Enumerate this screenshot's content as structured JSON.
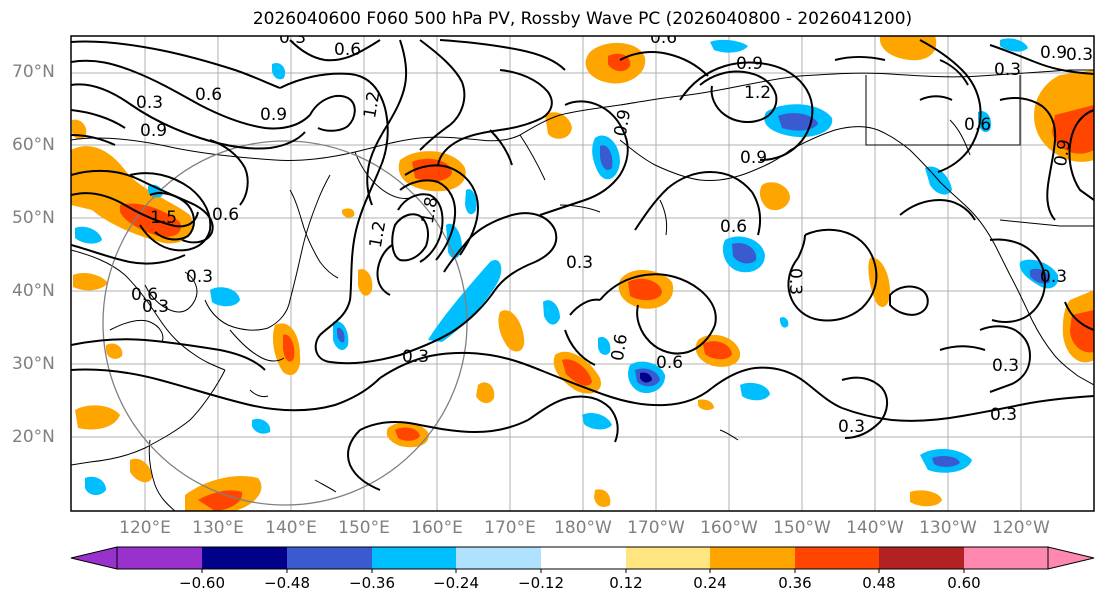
{
  "title": "2026040600 F060 500 hPa PV, Rossby Wave PC (2026040800 - 2026041200)",
  "lat_labels": [
    "70°N",
    "60°N",
    "50°N",
    "40°N",
    "30°N",
    "20°N"
  ],
  "lon_labels": [
    "120°E",
    "130°E",
    "140°E",
    "150°E",
    "160°E",
    "170°E",
    "180°W",
    "170°W",
    "160°W",
    "150°W",
    "140°W",
    "130°W",
    "120°W"
  ],
  "colorbar": {
    "ticks": [
      "−0.60",
      "−0.48",
      "−0.36",
      "−0.24",
      "−0.12",
      "0.12",
      "0.24",
      "0.36",
      "0.48",
      "0.60"
    ],
    "colors": [
      "#9932cc",
      "#00008b",
      "#3a5bcf",
      "#00bfff",
      "#b0e2ff",
      "#ffffff",
      "#ffe680",
      "#ffa500",
      "#ff4500",
      "#b22222",
      "#ff88b0"
    ]
  },
  "contour_labels": [
    "0.6",
    "0.3",
    "0.9",
    "1.2",
    "0.6",
    "0.3",
    "0.9",
    "0.9",
    "1.2",
    "0.3",
    "0.9",
    "0.6",
    "0.3",
    "1.5",
    "1.2",
    "1.8",
    "0.6",
    "0.3",
    "0.3",
    "0.6",
    "0.9",
    "0.3",
    "0.6",
    "0.3",
    "0.3",
    "0.3",
    "0.6",
    "0.3",
    "0.6",
    "0.6",
    "0.3",
    "0.9",
    "0.3",
    "0.9"
  ],
  "colors": {
    "contour": "#000000",
    "grid": "#b0b0b0",
    "axis_label": "#808080",
    "circle": "#808080",
    "coast": "#000000"
  }
}
